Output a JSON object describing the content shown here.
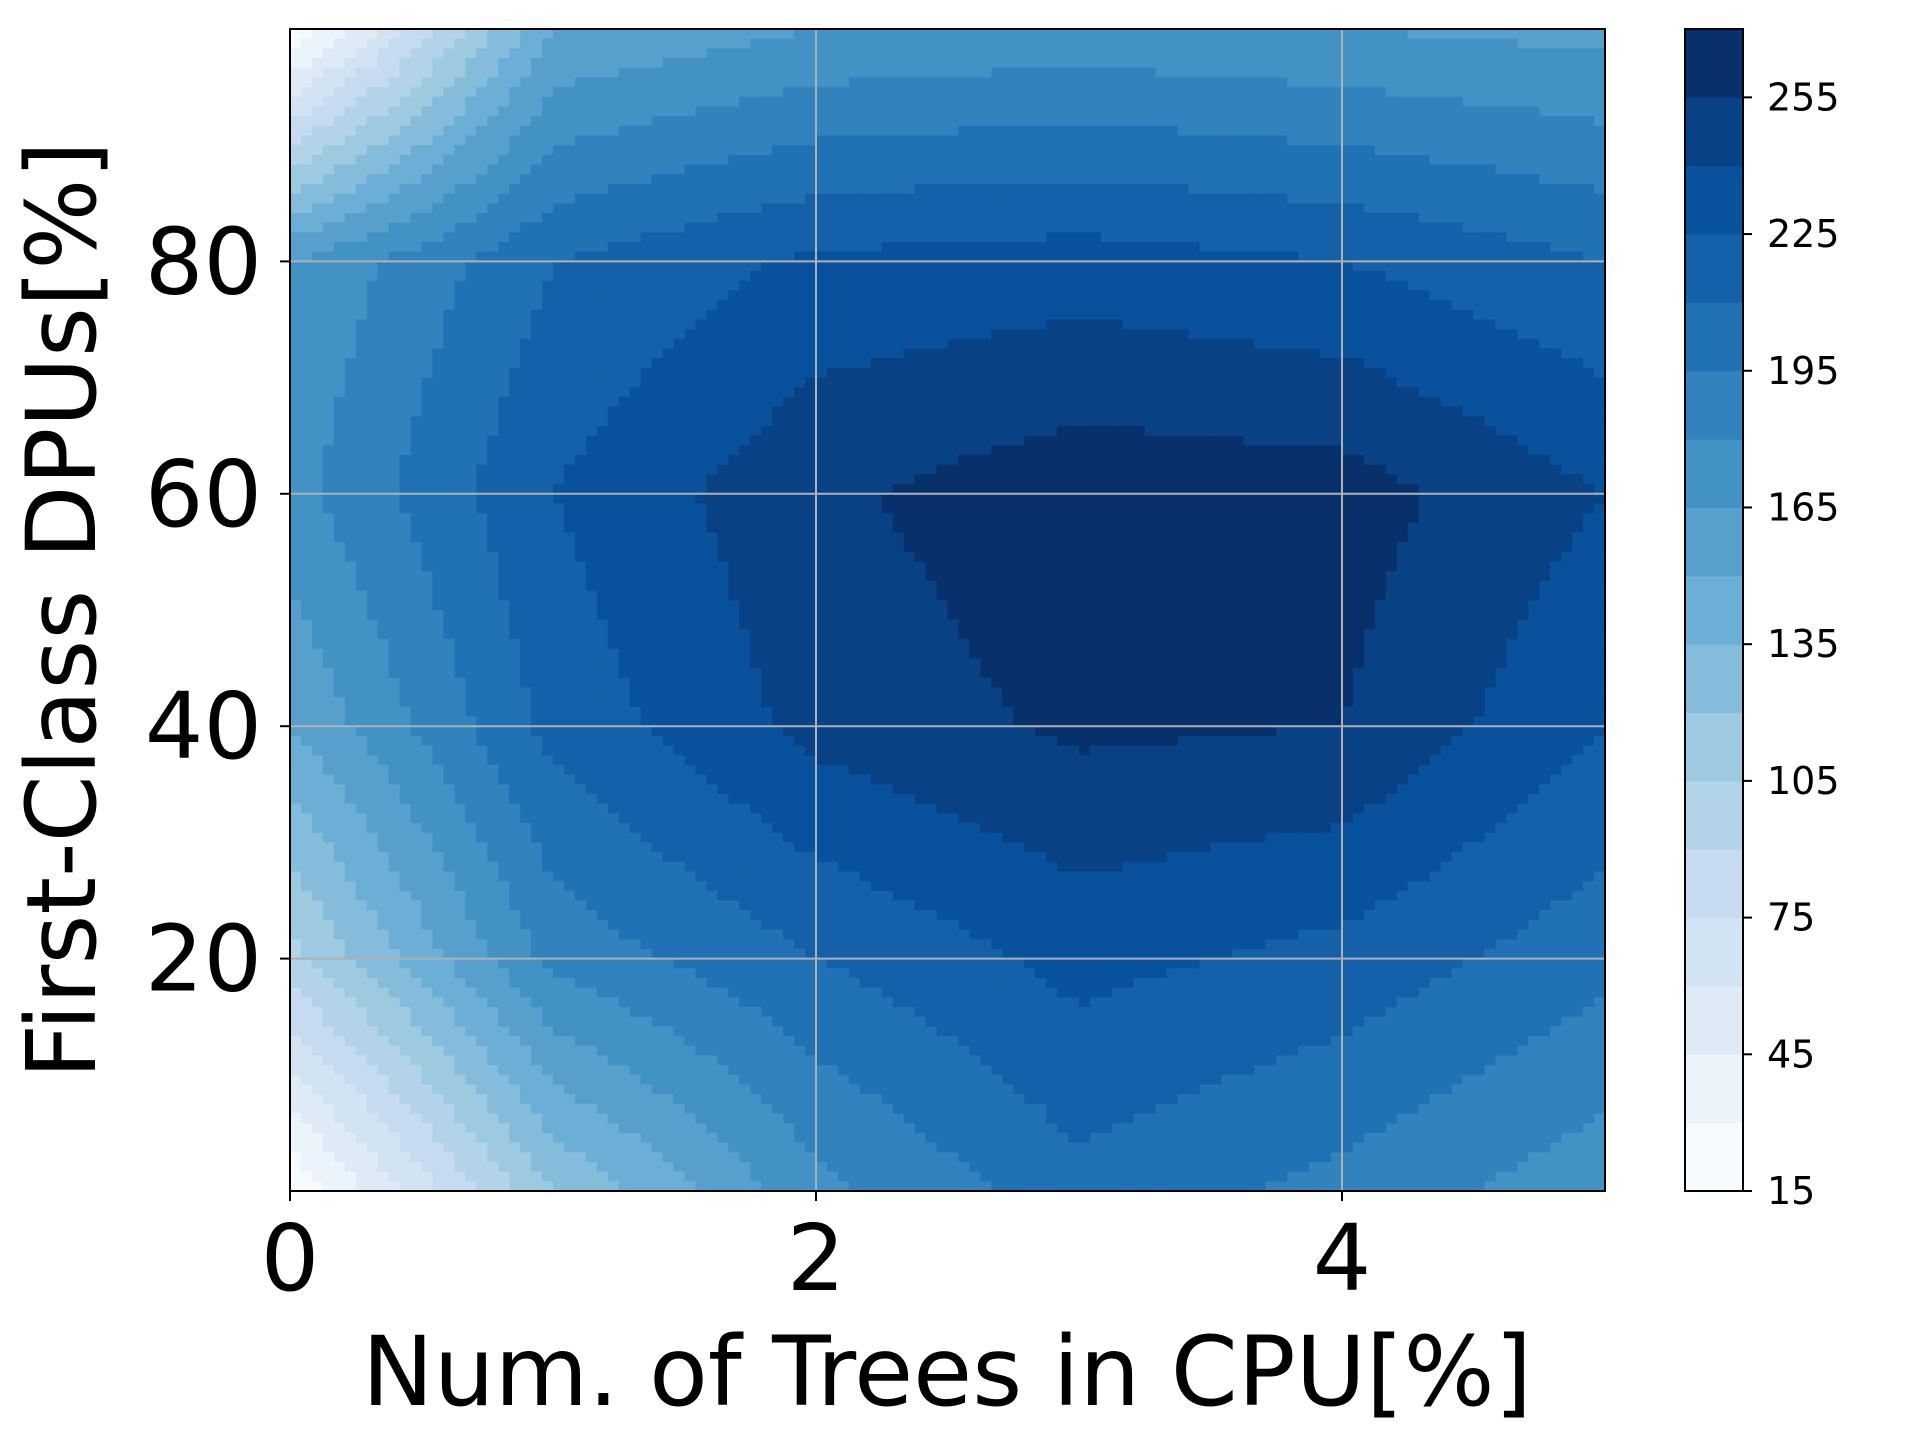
{
  "chart_data": {
    "type": "contourf",
    "title": "",
    "xlabel": "Num. of Trees in CPU[%]",
    "ylabel": "First-Class DPUs[%]",
    "xlim": [
      0,
      5
    ],
    "ylim": [
      0,
      100
    ],
    "x_ticks": [
      "0",
      "2",
      "4"
    ],
    "x_tick_values": [
      0,
      2,
      4
    ],
    "y_ticks": [
      "20",
      "40",
      "60",
      "80"
    ],
    "y_tick_values": [
      20,
      40,
      60,
      80
    ],
    "grid": true,
    "colormap": "Blues",
    "colorbar": {
      "range": [
        15,
        270
      ],
      "levels": [
        15,
        30,
        45,
        60,
        75,
        90,
        105,
        120,
        135,
        150,
        165,
        180,
        195,
        210,
        225,
        240,
        255,
        270
      ],
      "tick_labels": [
        "15",
        "45",
        "75",
        "105",
        "135",
        "165",
        "195",
        "225",
        "255"
      ],
      "tick_values": [
        15,
        45,
        75,
        105,
        135,
        165,
        195,
        225,
        255
      ]
    },
    "z": {
      "x": [
        0,
        1,
        2,
        3,
        4,
        5
      ],
      "y": [
        0,
        20,
        40,
        60,
        80,
        100
      ],
      "values": [
        [
          15,
          120,
          175,
          205,
          190,
          170
        ],
        [
          100,
          185,
          210,
          230,
          220,
          200
        ],
        [
          150,
          215,
          245,
          258,
          255,
          225
        ],
        [
          175,
          225,
          252,
          265,
          262,
          240
        ],
        [
          165,
          210,
          228,
          232,
          225,
          210
        ],
        [
          15,
          150,
          165,
          170,
          165,
          160
        ]
      ]
    }
  }
}
